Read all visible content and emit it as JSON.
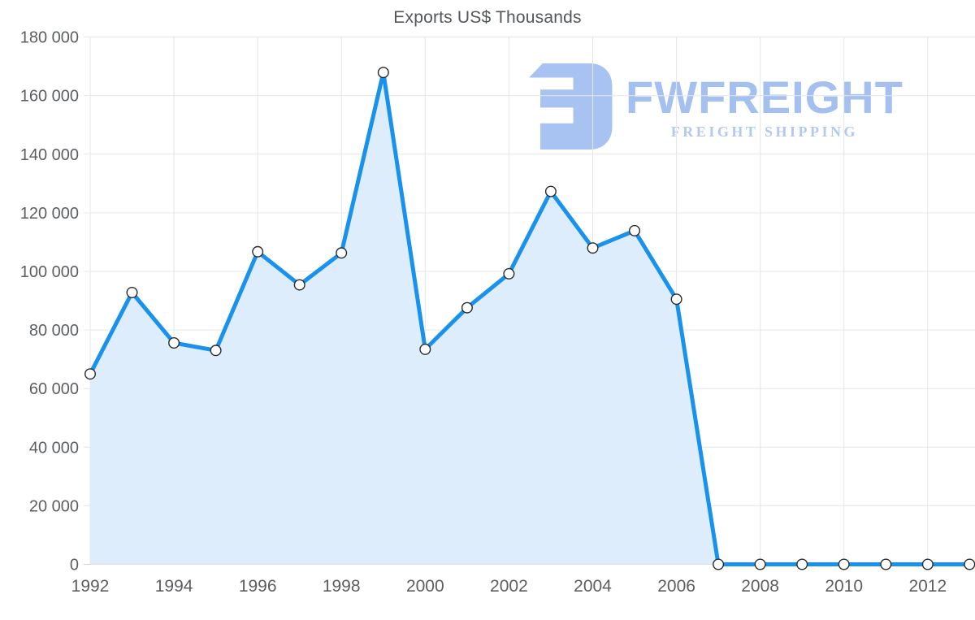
{
  "page": {
    "background": "#ffffff"
  },
  "chart_data": {
    "type": "area",
    "title": "Exports US$ Thousands",
    "xlabel": "",
    "ylabel": "",
    "x": [
      1992,
      1993,
      1994,
      1995,
      1996,
      1997,
      1998,
      1999,
      2000,
      2001,
      2002,
      2003,
      2004,
      2005,
      2006,
      2007,
      2008,
      2009,
      2010,
      2011,
      2012,
      2013
    ],
    "series": [
      {
        "name": "Exports US$ Thousands",
        "values": [
          65000,
          92800,
          75600,
          73000,
          106700,
          95400,
          106300,
          167900,
          73400,
          87600,
          99200,
          127300,
          108000,
          113900,
          90500,
          0,
          0,
          0,
          0,
          0,
          0,
          0
        ]
      }
    ],
    "ylim": [
      0,
      180000
    ],
    "grid": true,
    "legend_position": "none",
    "y_ticks": [
      {
        "value": 0,
        "label": "0"
      },
      {
        "value": 20000,
        "label": "20 000"
      },
      {
        "value": 40000,
        "label": "40 000"
      },
      {
        "value": 60000,
        "label": "60 000"
      },
      {
        "value": 80000,
        "label": "80 000"
      },
      {
        "value": 100000,
        "label": "100 000"
      },
      {
        "value": 120000,
        "label": "120 000"
      },
      {
        "value": 140000,
        "label": "140 000"
      },
      {
        "value": 160000,
        "label": "160 000"
      },
      {
        "value": 180000,
        "label": "180 000"
      }
    ],
    "x_ticks": [
      {
        "value": 1992,
        "label": "1992"
      },
      {
        "value": 1994,
        "label": "1994"
      },
      {
        "value": 1996,
        "label": "1996"
      },
      {
        "value": 1998,
        "label": "1998"
      },
      {
        "value": 2000,
        "label": "2000"
      },
      {
        "value": 2002,
        "label": "2002"
      },
      {
        "value": 2004,
        "label": "2004"
      },
      {
        "value": 2006,
        "label": "2006"
      },
      {
        "value": 2008,
        "label": "2008"
      },
      {
        "value": 2010,
        "label": "2010"
      },
      {
        "value": 2012,
        "label": "2012"
      }
    ],
    "colors": {
      "line": "#1892ec",
      "fill": "#ddedfb",
      "grid": "#e6e6e6",
      "axis_line": "#d4d4d4",
      "label": "#5b5e61",
      "title": "#54575a",
      "marker_fill": "#ffffff",
      "marker_stroke": "#2b2b2b"
    }
  },
  "watermark": {
    "brand": "FWFREIGHT",
    "tagline": "FREIGHT SHIPPING",
    "brand_color": "#a4c0ee",
    "icon_color": "#a8c3f1",
    "tagline_color": "#b2c8f1"
  }
}
